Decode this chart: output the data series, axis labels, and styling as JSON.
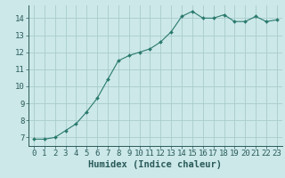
{
  "x": [
    0,
    1,
    2,
    3,
    4,
    5,
    6,
    7,
    8,
    9,
    10,
    11,
    12,
    13,
    14,
    15,
    16,
    17,
    18,
    19,
    20,
    21,
    22,
    23
  ],
  "y": [
    6.9,
    6.9,
    7.0,
    7.4,
    7.8,
    8.5,
    9.3,
    10.4,
    11.5,
    11.8,
    12.0,
    12.2,
    12.6,
    13.2,
    14.1,
    14.4,
    14.0,
    14.0,
    14.2,
    13.8,
    13.8,
    14.1,
    13.8,
    13.9
  ],
  "line_color": "#2a7a6e",
  "marker": "D",
  "marker_size": 2,
  "bg_color": "#cce8e8",
  "grid_color": "#aacccc",
  "title": "",
  "xlabel": "Humidex (Indice chaleur)",
  "ylabel": "",
  "xlim": [
    -0.5,
    23.5
  ],
  "ylim": [
    6.5,
    14.75
  ],
  "yticks": [
    7,
    8,
    9,
    10,
    11,
    12,
    13,
    14
  ],
  "xticks": [
    0,
    1,
    2,
    3,
    4,
    5,
    6,
    7,
    8,
    9,
    10,
    11,
    12,
    13,
    14,
    15,
    16,
    17,
    18,
    19,
    20,
    21,
    22,
    23
  ],
  "tick_color": "#2a5a5a",
  "axis_color": "#2a5a5a",
  "xlabel_fontsize": 7.5,
  "tick_fontsize": 6.5
}
